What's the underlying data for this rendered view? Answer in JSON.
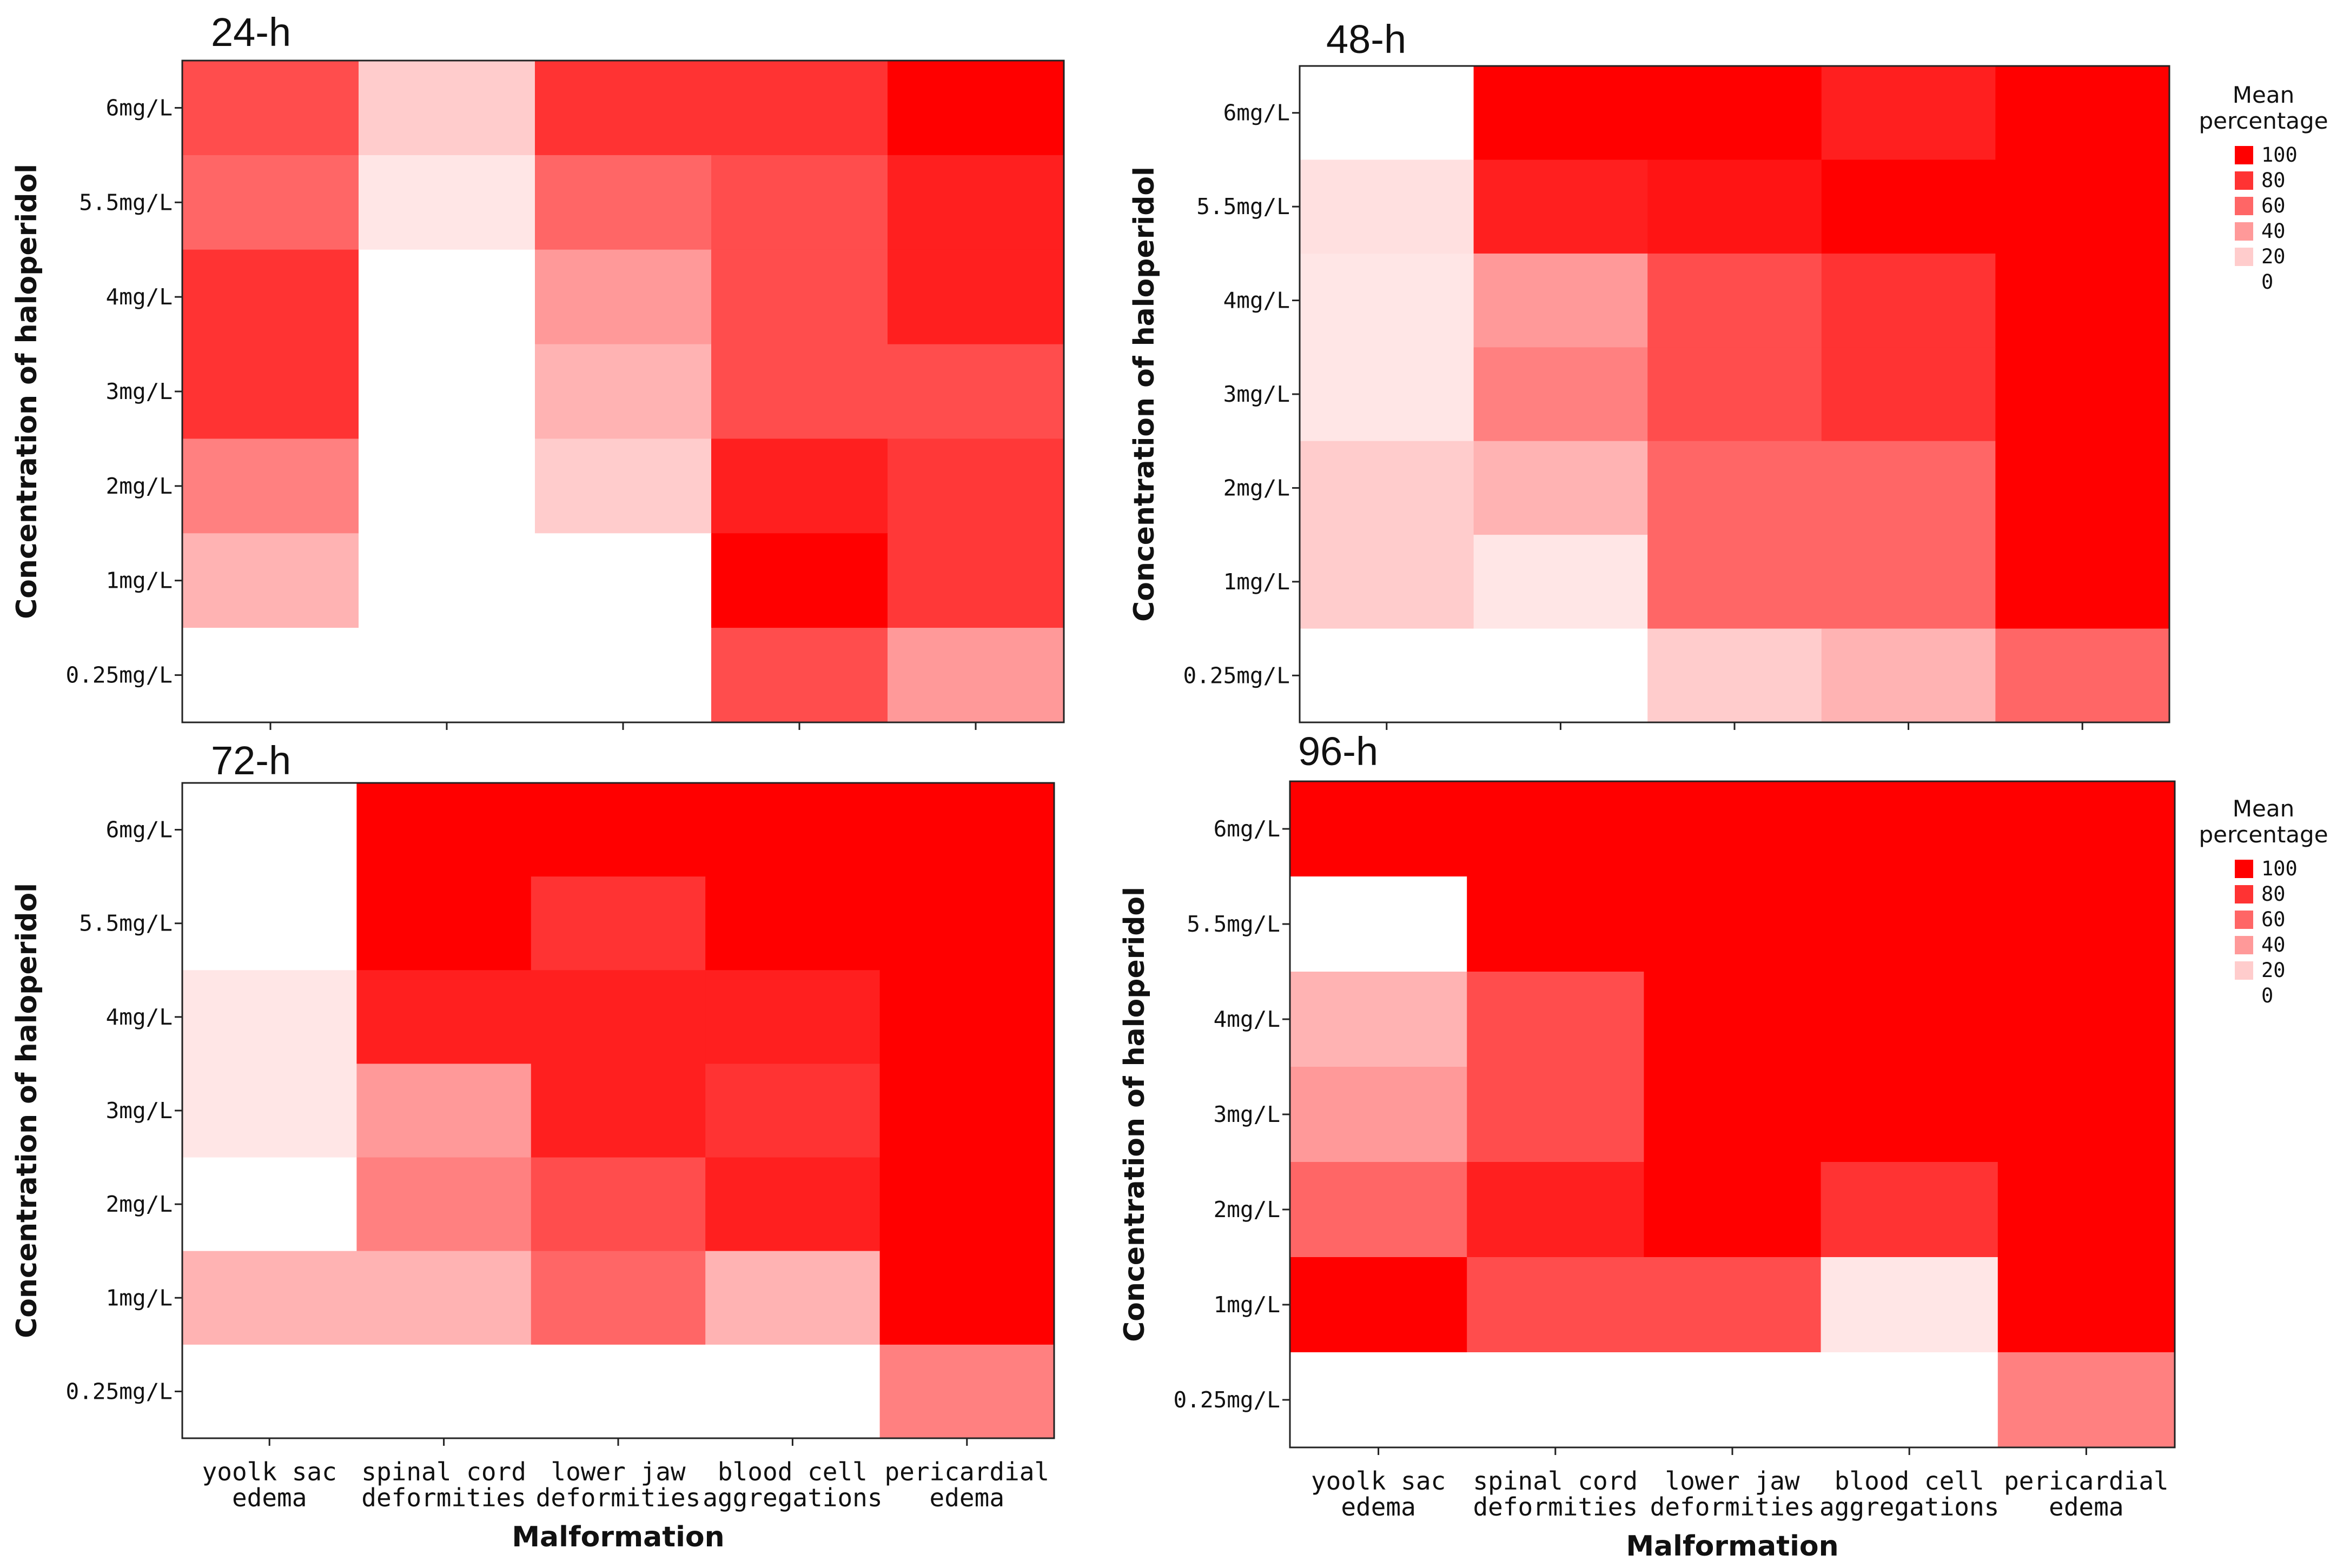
{
  "chart_data": [
    {
      "type": "heatmap",
      "title": "24-h",
      "xlabel": "",
      "ylabel": "Concentration of haloperidol",
      "categories": [
        "yoolk sac edema",
        "spinal cord deformities",
        "lower jaw deformities",
        "blood cell aggregations",
        "pericardial edema"
      ],
      "y_categories": [
        "6mg/L",
        "5.5mg/L",
        "4mg/L",
        "3mg/L",
        "2mg/L",
        "1mg/L",
        "0.25mg/L"
      ],
      "values": [
        [
          70,
          20,
          80,
          80,
          100
        ],
        [
          60,
          10,
          60,
          70,
          88
        ],
        [
          80,
          0,
          40,
          70,
          88
        ],
        [
          80,
          0,
          30,
          70,
          70
        ],
        [
          50,
          0,
          20,
          88,
          78
        ],
        [
          30,
          0,
          0,
          100,
          78
        ],
        [
          0,
          0,
          0,
          70,
          40
        ]
      ],
      "zlim": [
        0,
        100
      ],
      "show_x_labels": false,
      "show_legend": false
    },
    {
      "type": "heatmap",
      "title": "48-h",
      "xlabel": "",
      "ylabel": "Concentration of haloperidol",
      "categories": [
        "yoolk sac edema",
        "spinal cord deformities",
        "lower jaw deformities",
        "blood cell aggregations",
        "pericardial edema"
      ],
      "y_categories": [
        "6mg/L",
        "5.5mg/L",
        "4mg/L",
        "3mg/L",
        "2mg/L",
        "1mg/L",
        "0.25mg/L"
      ],
      "values": [
        [
          0,
          100,
          100,
          88,
          100
        ],
        [
          12,
          88,
          92,
          100,
          100
        ],
        [
          10,
          40,
          70,
          80,
          100
        ],
        [
          10,
          50,
          70,
          80,
          100
        ],
        [
          20,
          30,
          60,
          60,
          100
        ],
        [
          20,
          10,
          60,
          60,
          100
        ],
        [
          0,
          0,
          20,
          30,
          60
        ]
      ],
      "zlim": [
        0,
        100
      ],
      "show_x_labels": false,
      "show_legend": true
    },
    {
      "type": "heatmap",
      "title": "72-h",
      "xlabel": "Malformation",
      "ylabel": "Concentration of haloperidol",
      "categories": [
        "yoolk sac edema",
        "spinal cord deformities",
        "lower jaw deformities",
        "blood cell aggregations",
        "pericardial edema"
      ],
      "y_categories": [
        "6mg/L",
        "5.5mg/L",
        "4mg/L",
        "3mg/L",
        "2mg/L",
        "1mg/L",
        "0.25mg/L"
      ],
      "values": [
        [
          0,
          100,
          100,
          100,
          100
        ],
        [
          0,
          100,
          80,
          100,
          100
        ],
        [
          10,
          88,
          88,
          88,
          100
        ],
        [
          10,
          40,
          88,
          80,
          100
        ],
        [
          0,
          50,
          70,
          88,
          100
        ],
        [
          30,
          30,
          60,
          30,
          100
        ],
        [
          0,
          0,
          0,
          0,
          50
        ]
      ],
      "zlim": [
        0,
        100
      ],
      "show_x_labels": true,
      "show_legend": false
    },
    {
      "type": "heatmap",
      "title": "96-h",
      "xlabel": "Malformation",
      "ylabel": "Concentration of haloperidol",
      "categories": [
        "yoolk sac edema",
        "spinal cord deformities",
        "lower jaw deformities",
        "blood cell aggregations",
        "pericardial edema"
      ],
      "y_categories": [
        "6mg/L",
        "5.5mg/L",
        "4mg/L",
        "3mg/L",
        "2mg/L",
        "1mg/L",
        "0.25mg/L"
      ],
      "values": [
        [
          100,
          100,
          100,
          100,
          100
        ],
        [
          0,
          100,
          100,
          100,
          100
        ],
        [
          30,
          70,
          100,
          100,
          100
        ],
        [
          40,
          70,
          100,
          100,
          100
        ],
        [
          60,
          88,
          100,
          80,
          100
        ],
        [
          100,
          70,
          70,
          10,
          100
        ],
        [
          0,
          0,
          0,
          0,
          50
        ]
      ],
      "zlim": [
        0,
        100
      ],
      "show_x_labels": true,
      "show_legend": true
    }
  ],
  "legend": {
    "title_line1": "Mean",
    "title_line2": "percentage",
    "items": [
      {
        "label": "100",
        "value": 100
      },
      {
        "label": "80",
        "value": 80
      },
      {
        "label": "60",
        "value": 60
      },
      {
        "label": "40",
        "value": 40
      },
      {
        "label": "20",
        "value": 20
      },
      {
        "label": "0",
        "value": 0
      }
    ]
  },
  "colors": {
    "high": "#ff0000",
    "low": "#ffffff",
    "frame": "#222222"
  }
}
